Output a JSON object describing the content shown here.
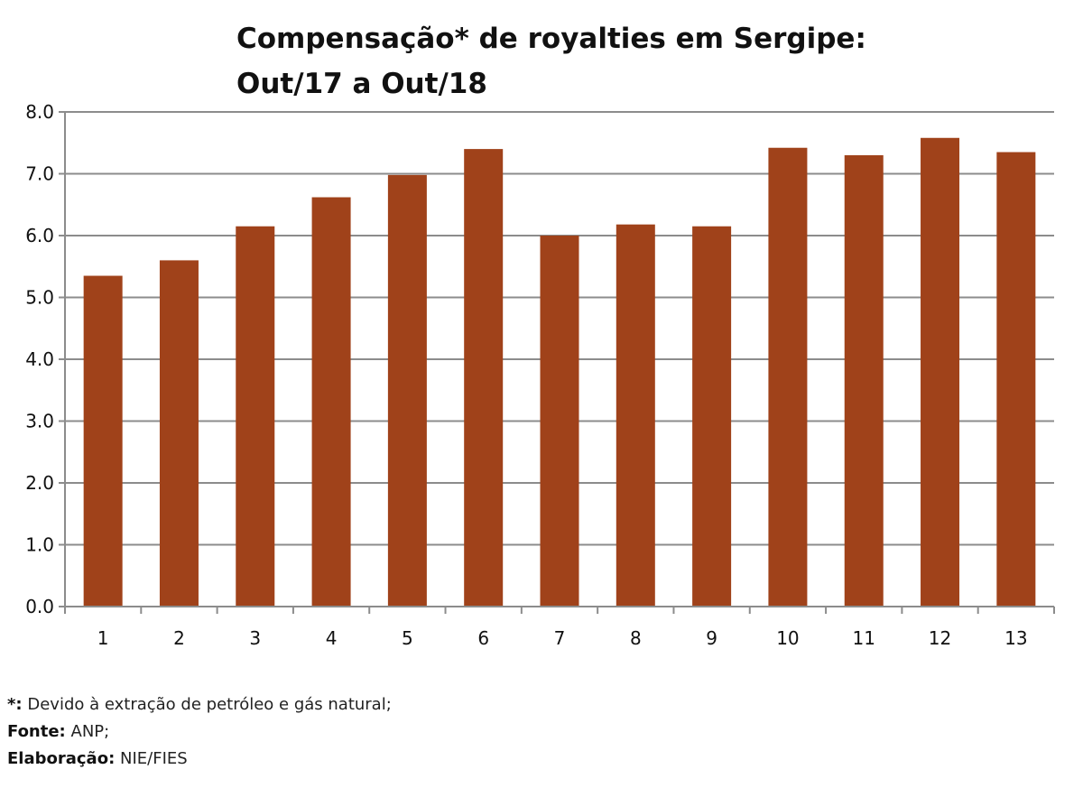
{
  "chart_data": {
    "type": "bar",
    "title_line1": "Compensação* de royalties em Sergipe:",
    "title_line2": "Out/17 a Out/18",
    "categories": [
      "1",
      "2",
      "3",
      "4",
      "5",
      "6",
      "7",
      "8",
      "9",
      "10",
      "11",
      "12",
      "13"
    ],
    "values": [
      5.35,
      5.6,
      6.15,
      6.62,
      6.98,
      7.4,
      6.0,
      6.18,
      6.15,
      7.42,
      7.3,
      7.58,
      7.35
    ],
    "ylim": [
      0,
      8
    ],
    "yticks": [
      "0.0",
      "1.0",
      "2.0",
      "3.0",
      "4.0",
      "5.0",
      "6.0",
      "7.0",
      "8.0"
    ],
    "grid": true,
    "bar_color": "#A0421A"
  },
  "notes": {
    "asterisk_label": "*:",
    "asterisk_text": "Devido à extração de petróleo e gás natural;",
    "source_label": "Fonte:",
    "source_text": "ANP;",
    "elaboration_label": "Elaboração:",
    "elaboration_text": "NIE/FIES"
  }
}
